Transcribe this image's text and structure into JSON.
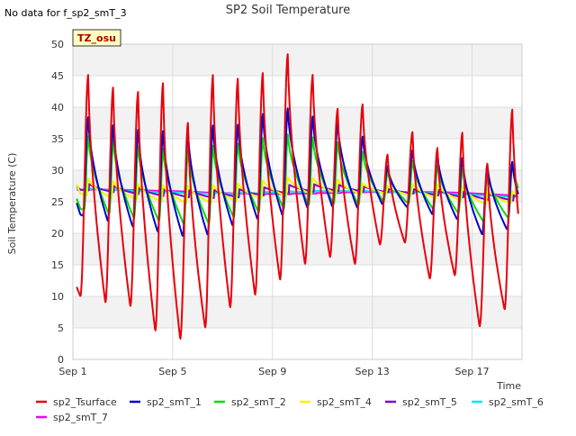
{
  "header": {
    "no_data_note": "No data for f_sp2_smT_3",
    "title": "SP2 Soil Temperature",
    "badge": "TZ_osu"
  },
  "chart_data": {
    "type": "line",
    "title": "SP2 Soil Temperature",
    "xlabel": "Time",
    "ylabel": "Soil Temperature (C)",
    "xlim": [
      0.0,
      18.0
    ],
    "ylim": [
      0,
      50
    ],
    "x_ticks": [
      {
        "value": 0,
        "label": "Sep 1"
      },
      {
        "value": 4,
        "label": "Sep 5"
      },
      {
        "value": 8,
        "label": "Sep 9"
      },
      {
        "value": 12,
        "label": "Sep 13"
      },
      {
        "value": 16,
        "label": "Sep 17"
      }
    ],
    "y_ticks": [
      0,
      5,
      10,
      15,
      20,
      25,
      30,
      35,
      40,
      45,
      50
    ],
    "grid": true,
    "legend_position": "bottom",
    "series": [
      {
        "name": "sp2_Tsurface",
        "color": "#e8000b",
        "daily_max": [
          45.2,
          43.2,
          42.5,
          43.9,
          37.6,
          45.2,
          44.6,
          45.5,
          48.5,
          45.2,
          39.8,
          40.5,
          32.5,
          36.1,
          33.6,
          36.0,
          31.1,
          39.7
        ],
        "daily_min": [
          10.0,
          9.0,
          8.4,
          4.5,
          3.2,
          5.0,
          8.2,
          10.2,
          12.6,
          15.1,
          16.2,
          15.1,
          18.2,
          18.5,
          12.8,
          13.3,
          5.2,
          7.9
        ],
        "start": 11.5,
        "end": 6.2,
        "min_phase": 0.3
      },
      {
        "name": "sp2_smT_1",
        "color": "#0000cc",
        "daily_max": [
          38.5,
          37.2,
          36.5,
          36.3,
          36.2,
          37.2,
          37.3,
          39.0,
          39.9,
          38.6,
          37.7,
          35.4,
          30.7,
          33.2,
          32.6,
          32.0,
          31.0,
          31.4
        ],
        "daily_min": [
          22.8,
          21.9,
          21.0,
          20.2,
          19.5,
          19.7,
          21.2,
          22.2,
          22.8,
          24.0,
          24.2,
          24.0,
          24.6,
          24.1,
          23.0,
          22.2,
          19.8,
          20.6
        ],
        "start": 24.8,
        "end": 21.1,
        "min_phase": 0.4
      },
      {
        "name": "sp2_smT_2",
        "color": "#00dd00",
        "daily_max": [
          35.5,
          34.8,
          33.9,
          33.5,
          33.3,
          34.0,
          34.3,
          35.2,
          35.8,
          35.3,
          34.5,
          33.0,
          29.8,
          31.5,
          30.8,
          30.3,
          29.9,
          31.3
        ],
        "daily_min": [
          23.7,
          23.0,
          22.4,
          21.9,
          21.4,
          21.5,
          22.5,
          23.3,
          23.9,
          24.5,
          24.6,
          24.5,
          25.0,
          24.7,
          23.8,
          23.2,
          21.9,
          22.4
        ],
        "start": 25.5,
        "end": 22.6,
        "min_phase": 0.45
      },
      {
        "name": "sp2_smT_4",
        "color": "#f5f500",
        "daily_max": [
          28.8,
          28.4,
          28.0,
          27.8,
          27.7,
          27.8,
          28.0,
          28.5,
          29.0,
          28.9,
          28.6,
          28.0,
          27.6,
          27.9,
          27.8,
          27.6,
          27.0,
          26.8
        ],
        "daily_min": [
          26.0,
          25.6,
          25.3,
          25.0,
          24.8,
          24.8,
          25.1,
          25.5,
          25.9,
          26.2,
          26.3,
          26.2,
          26.3,
          26.0,
          25.6,
          25.2,
          24.6,
          24.7
        ],
        "start": 27.8,
        "end": 25.6,
        "min_phase": 0.55
      },
      {
        "name": "sp2_smT_5",
        "color": "#7f00cc",
        "daily_max": [
          28.0,
          27.7,
          27.4,
          27.2,
          27.1,
          27.1,
          27.2,
          27.5,
          27.9,
          28.0,
          27.9,
          27.6,
          27.2,
          27.2,
          27.1,
          26.9,
          26.5,
          26.2
        ],
        "daily_min": [
          26.8,
          26.5,
          26.2,
          25.9,
          25.7,
          25.6,
          25.7,
          26.0,
          26.3,
          26.6,
          26.7,
          26.6,
          26.5,
          26.3,
          26.0,
          25.7,
          25.3,
          25.2
        ],
        "start": 27.4,
        "end": 25.4,
        "min_phase": 0.65
      },
      {
        "name": "sp2_smT_6",
        "color": "#00e5ee",
        "daily_max": [
          27.2,
          27.1,
          26.9,
          26.8,
          26.6,
          26.5,
          26.5,
          26.6,
          26.7,
          26.8,
          26.8,
          26.8,
          26.7,
          26.7,
          26.6,
          26.4,
          26.2,
          26.0
        ],
        "daily_min": [
          26.9,
          26.8,
          26.6,
          26.4,
          26.3,
          26.2,
          26.2,
          26.3,
          26.4,
          26.5,
          26.6,
          26.6,
          26.5,
          26.4,
          26.3,
          26.1,
          25.9,
          25.7
        ],
        "start": 27.0,
        "end": 25.8,
        "min_phase": 0.7
      },
      {
        "name": "sp2_smT_7",
        "color": "#ee00ee",
        "daily_max": [
          27.0,
          27.0,
          26.9,
          26.8,
          26.7,
          26.5,
          26.4,
          26.3,
          26.3,
          26.4,
          26.5,
          26.6,
          26.6,
          26.6,
          26.6,
          26.5,
          26.3,
          26.1
        ],
        "daily_min": [
          26.9,
          26.9,
          26.8,
          26.7,
          26.6,
          26.4,
          26.3,
          26.2,
          26.2,
          26.3,
          26.4,
          26.5,
          26.5,
          26.5,
          26.5,
          26.4,
          26.2,
          26.0
        ],
        "start": 26.9,
        "end": 26.0,
        "min_phase": 0.75
      }
    ]
  },
  "legend": {
    "items": [
      {
        "label": "sp2_Tsurface",
        "color": "#e8000b"
      },
      {
        "label": "sp2_smT_1",
        "color": "#0000cc"
      },
      {
        "label": "sp2_smT_2",
        "color": "#00dd00"
      },
      {
        "label": "sp2_smT_4",
        "color": "#f5f500"
      },
      {
        "label": "sp2_smT_5",
        "color": "#7f00cc"
      },
      {
        "label": "sp2_smT_6",
        "color": "#00e5ee"
      },
      {
        "label": "sp2_smT_7",
        "color": "#ee00ee"
      }
    ]
  }
}
